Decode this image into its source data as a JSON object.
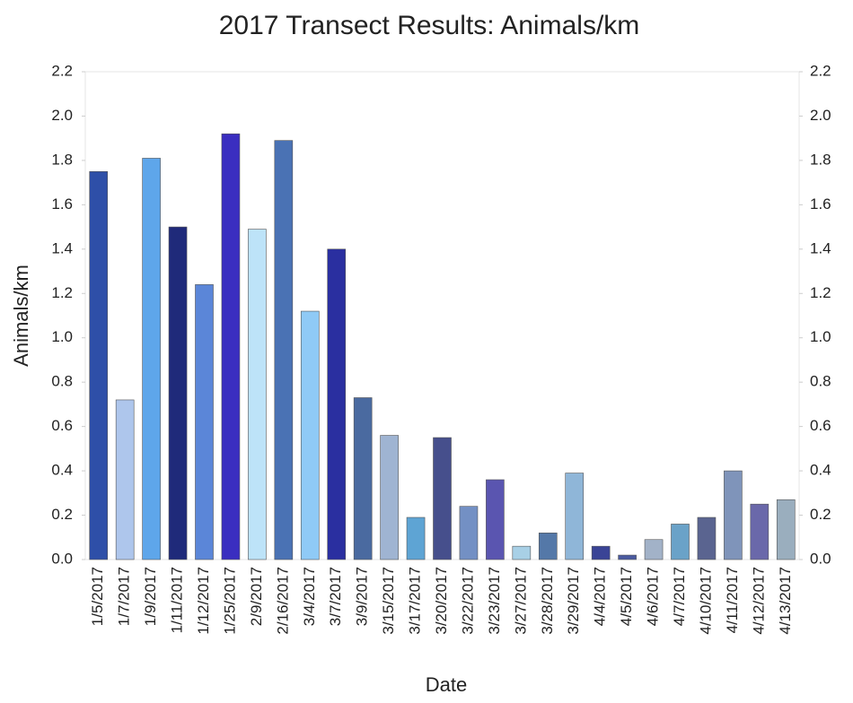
{
  "chart_data": {
    "type": "bar",
    "title": "2017 Transect Results: Animals/km",
    "x_label": "Date",
    "y_label": "Animals/km",
    "categories": [
      "1/5/2017",
      "1/7/2017",
      "1/9/2017",
      "1/11/2017",
      "1/12/2017",
      "1/25/2017",
      "2/9/2017",
      "2/16/2017",
      "3/4/2017",
      "3/7/2017",
      "3/9/2017",
      "3/15/2017",
      "3/17/2017",
      "3/20/2017",
      "3/22/2017",
      "3/23/2017",
      "3/27/2017",
      "3/28/2017",
      "3/29/2017",
      "4/4/2017",
      "4/5/2017",
      "4/6/2017",
      "4/7/2017",
      "4/10/2017",
      "4/11/2017",
      "4/12/2017",
      "4/13/2017"
    ],
    "values": [
      1.75,
      0.72,
      1.81,
      1.5,
      1.24,
      1.92,
      1.49,
      1.89,
      1.12,
      1.4,
      0.73,
      0.56,
      0.19,
      0.55,
      0.24,
      0.36,
      0.06,
      0.12,
      0.39,
      0.06,
      0.02,
      0.09,
      0.16,
      0.19,
      0.4,
      0.25,
      0.27
    ],
    "colors": [
      "#2e4fa8",
      "#aec6ec",
      "#5ea6ea",
      "#1f2a7a",
      "#5b86d8",
      "#3a2ec0",
      "#bde3f8",
      "#4a72b4",
      "#8fcaf6",
      "#2a2fa0",
      "#4a6aa0",
      "#9fb4d2",
      "#5ea4d4",
      "#464f8c",
      "#7390c4",
      "#5a55b0",
      "#a8d0e6",
      "#5478a8",
      "#8fb6d8",
      "#3a4496",
      "#4a5aa0",
      "#a2b2c8",
      "#6aa2c8",
      "#5a6490",
      "#7f94ba",
      "#6a68aa",
      "#9aaebe"
    ],
    "ylim": [
      0,
      2.2
    ],
    "yticks": [
      {
        "value": 0,
        "label": "0.0"
      },
      0.2,
      0.4,
      0.6,
      0.8,
      {
        "value": 1,
        "label": "1.0"
      },
      1.2,
      1.4,
      1.6,
      1.8,
      {
        "value": 2,
        "label": "2.0"
      },
      2.2
    ],
    "y2lim": [
      0,
      2.2
    ],
    "y2ticks": [
      {
        "value": 0,
        "label": "0.0"
      },
      0.2,
      0.4,
      0.6,
      0.8,
      {
        "value": 1,
        "label": "1.0"
      },
      1.2,
      1.4,
      1.6,
      1.8,
      {
        "value": 2,
        "label": "2.0"
      },
      2.2
    ],
    "grid": false
  }
}
